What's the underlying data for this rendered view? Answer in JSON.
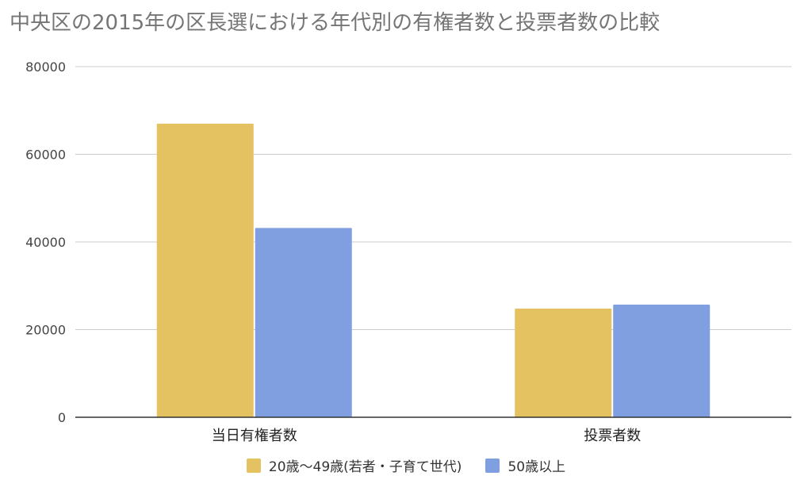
{
  "chart_data": {
    "type": "bar",
    "title": "中央区の2015年の区長選における年代別の有権者数と投票者数の比較",
    "xlabel": "",
    "ylabel": "",
    "categories": [
      "当日有権者数",
      "投票者数"
    ],
    "series": [
      {
        "name": "20歳〜49歳(若者・子育て世代)",
        "values": [
          67000,
          24800
        ],
        "color": "#e4c262"
      },
      {
        "name": "50歳以上",
        "values": [
          43200,
          25700
        ],
        "color": "#7f9fe0"
      }
    ],
    "ylim": [
      0,
      80000
    ],
    "yticks": [
      0,
      20000,
      40000,
      60000,
      80000
    ],
    "ytick_labels": [
      "0",
      "20000",
      "40000",
      "60000",
      "80000"
    ],
    "grid": true,
    "legend_position": "bottom"
  }
}
